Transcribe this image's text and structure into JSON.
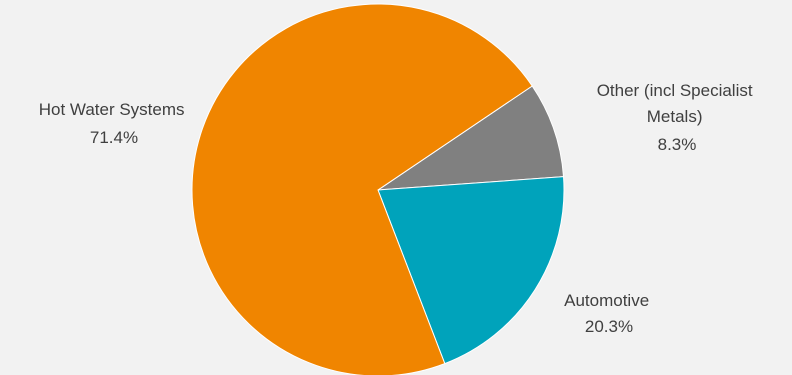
{
  "chart_data": {
    "type": "pie",
    "title": "",
    "slices": [
      {
        "name_lines": [
          "Other (incl Specialist",
          "Metals)"
        ],
        "value": 8.3,
        "label": "8.3%",
        "color": "#808080"
      },
      {
        "name_lines": [
          "Automotive"
        ],
        "value": 20.3,
        "label": "20.3%",
        "color": "#00a3bb"
      },
      {
        "name_lines": [
          "Hot Water Systems"
        ],
        "value": 71.4,
        "label": "71.4%",
        "color": "#f08500"
      }
    ],
    "start_angle_deg": 56,
    "direction": "clockwise",
    "legend": "none",
    "background": "#f2f2f2"
  }
}
